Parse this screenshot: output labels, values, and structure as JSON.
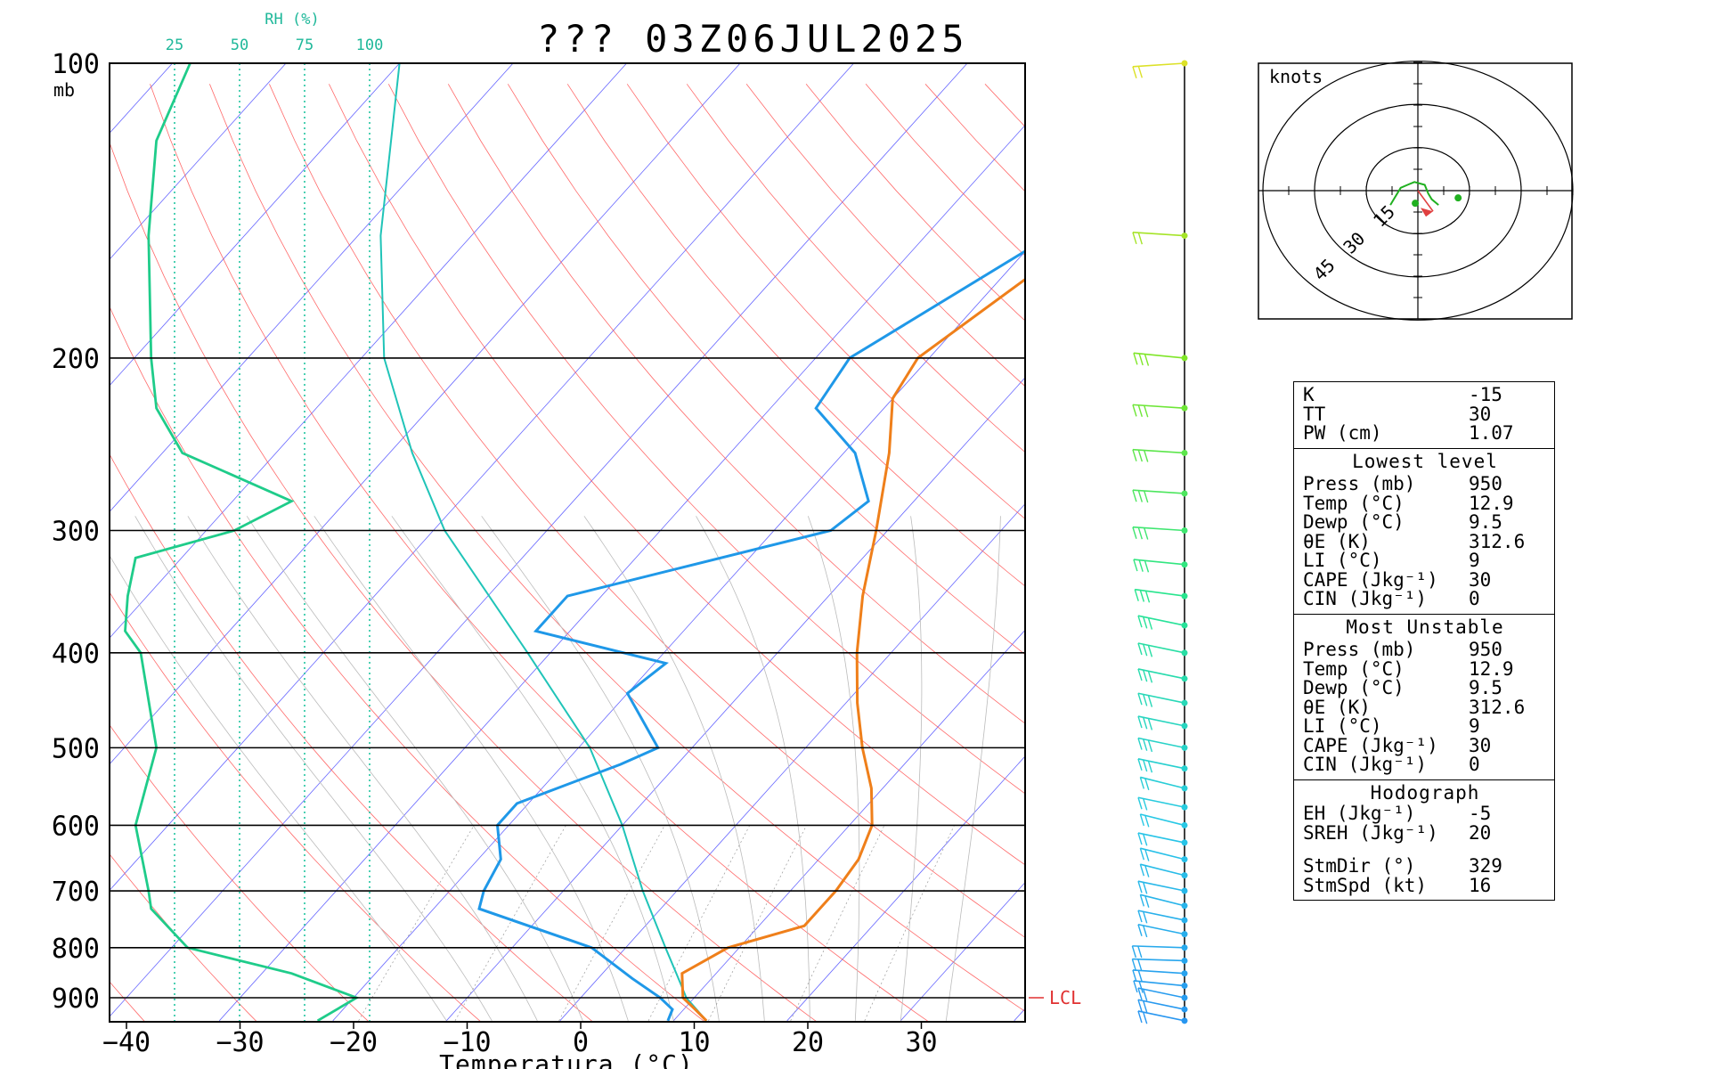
{
  "title": "??? 03Z06JUL2025",
  "colors": {
    "temperature": "#ef7f1a",
    "dewpoint": "#1f98e8",
    "parcel": "#20c4b8",
    "rh": "#1fcc8a",
    "isotherm": "#4040ff",
    "dry_adiabat": "#ff5050",
    "moist_adiabat": "#bbbbbb",
    "mixing_ratio": "#20c4a0",
    "lcl": "#e03030"
  },
  "chart_data": [
    {
      "type": "line",
      "name": "skew-t",
      "xlabel": "Temperatura (°C)",
      "ylabel_unit": "mb",
      "x_ticks": [
        -40,
        -30,
        -20,
        -10,
        0,
        10,
        20,
        30
      ],
      "y_ticks": [
        100,
        200,
        300,
        400,
        500,
        600,
        700,
        800,
        900
      ],
      "ylim": [
        950,
        100
      ],
      "y_scale": "log",
      "rh_axis": {
        "label": "RH (%)",
        "ticks": [
          25,
          50,
          75,
          100
        ]
      },
      "lcl_label": "LCL",
      "lcl_pressure": 900,
      "series": [
        {
          "name": "temperature",
          "points": [
            [
              950,
              12.9
            ],
            [
              925,
              11
            ],
            [
              900,
              9
            ],
            [
              850,
              7
            ],
            [
              800,
              9
            ],
            [
              760,
              14
            ],
            [
              700,
              14
            ],
            [
              650,
              13.5
            ],
            [
              600,
              12
            ],
            [
              550,
              9
            ],
            [
              500,
              5
            ],
            [
              450,
              1
            ],
            [
              400,
              -3
            ],
            [
              350,
              -7
            ],
            [
              300,
              -11
            ],
            [
              250,
              -16
            ],
            [
              220,
              -20
            ],
            [
              200,
              -21
            ],
            [
              150,
              -16
            ],
            [
              120,
              -12
            ],
            [
              100,
              -9
            ]
          ]
        },
        {
          "name": "dewpoint",
          "points": [
            [
              950,
              9.5
            ],
            [
              925,
              9
            ],
            [
              900,
              7
            ],
            [
              860,
              3
            ],
            [
              800,
              -3
            ],
            [
              730,
              -16
            ],
            [
              700,
              -17
            ],
            [
              650,
              -18
            ],
            [
              600,
              -21
            ],
            [
              570,
              -21
            ],
            [
              520,
              -15
            ],
            [
              500,
              -13
            ],
            [
              440,
              -20
            ],
            [
              410,
              -19
            ],
            [
              380,
              -33
            ],
            [
              350,
              -33
            ],
            [
              300,
              -15
            ],
            [
              280,
              -14
            ],
            [
              250,
              -19
            ],
            [
              225,
              -26
            ],
            [
              200,
              -27
            ],
            [
              150,
              -19
            ],
            [
              120,
              -14
            ],
            [
              100,
              -10
            ]
          ]
        },
        {
          "name": "parcel",
          "points": [
            [
              950,
              12.9
            ],
            [
              900,
              9.3
            ],
            [
              850,
              6.5
            ],
            [
              800,
              3.5
            ],
            [
              700,
              -3
            ],
            [
              600,
              -10
            ],
            [
              500,
              -19
            ],
            [
              400,
              -32
            ],
            [
              300,
              -49
            ],
            [
              250,
              -58
            ],
            [
              200,
              -68
            ],
            [
              150,
              -78
            ],
            [
              100,
              -90
            ]
          ]
        },
        {
          "name": "relative_humidity",
          "points": [
            [
              950,
              80
            ],
            [
              900,
              95
            ],
            [
              850,
              70
            ],
            [
              800,
              30
            ],
            [
              730,
              16
            ],
            [
              700,
              15
            ],
            [
              600,
              10
            ],
            [
              500,
              18
            ],
            [
              400,
              12
            ],
            [
              380,
              6
            ],
            [
              350,
              7
            ],
            [
              320,
              10
            ],
            [
              300,
              48
            ],
            [
              280,
              70
            ],
            [
              250,
              28
            ],
            [
              225,
              18
            ],
            [
              200,
              16
            ],
            [
              150,
              15
            ],
            [
              120,
              18
            ],
            [
              100,
              31
            ]
          ]
        }
      ]
    },
    {
      "type": "line",
      "name": "wind-profile",
      "barbs": [
        {
          "p": 950,
          "dir": 60,
          "spd": 5
        },
        {
          "p": 925,
          "dir": 60,
          "spd": 5
        },
        {
          "p": 900,
          "dir": 60,
          "spd": 5
        },
        {
          "p": 875,
          "dir": 75,
          "spd": 5
        },
        {
          "p": 850,
          "dir": 80,
          "spd": 5
        },
        {
          "p": 825,
          "dir": 85,
          "spd": 5
        },
        {
          "p": 800,
          "dir": 85,
          "spd": 5
        },
        {
          "p": 775,
          "dir": 60,
          "spd": 5
        },
        {
          "p": 750,
          "dir": 60,
          "spd": 5
        },
        {
          "p": 725,
          "dir": 55,
          "spd": 5
        },
        {
          "p": 700,
          "dir": 60,
          "spd": 5
        },
        {
          "p": 675,
          "dir": 55,
          "spd": 5
        },
        {
          "p": 650,
          "dir": 55,
          "spd": 5
        },
        {
          "p": 625,
          "dir": 60,
          "spd": 5
        },
        {
          "p": 600,
          "dir": 55,
          "spd": 5
        },
        {
          "p": 575,
          "dir": 60,
          "spd": 5
        },
        {
          "p": 550,
          "dir": 55,
          "spd": 5
        },
        {
          "p": 525,
          "dir": 60,
          "spd": 10
        },
        {
          "p": 500,
          "dir": 60,
          "spd": 10
        },
        {
          "p": 475,
          "dir": 60,
          "spd": 10
        },
        {
          "p": 450,
          "dir": 60,
          "spd": 10
        },
        {
          "p": 425,
          "dir": 60,
          "spd": 10
        },
        {
          "p": 400,
          "dir": 60,
          "spd": 10
        },
        {
          "p": 375,
          "dir": 60,
          "spd": 10
        },
        {
          "p": 350,
          "dir": 70,
          "spd": 10
        },
        {
          "p": 325,
          "dir": 75,
          "spd": 10
        },
        {
          "p": 300,
          "dir": 80,
          "spd": 10
        },
        {
          "p": 275,
          "dir": 80,
          "spd": 10
        },
        {
          "p": 250,
          "dir": 80,
          "spd": 10
        },
        {
          "p": 225,
          "dir": 80,
          "spd": 10
        },
        {
          "p": 200,
          "dir": 75,
          "spd": 10
        },
        {
          "p": 150,
          "dir": 80,
          "spd": 5
        },
        {
          "p": 100,
          "dir": 100,
          "spd": 5
        }
      ]
    },
    {
      "type": "line",
      "name": "hodograph",
      "unit_label": "knots",
      "ring_labels": [
        15,
        30,
        45
      ],
      "points": [
        [
          -8,
          -5
        ],
        [
          -7,
          -3
        ],
        [
          -5,
          1
        ],
        [
          -3,
          2
        ],
        [
          -1,
          3
        ],
        [
          2,
          2
        ],
        [
          3,
          -1
        ],
        [
          4,
          -3
        ],
        [
          6,
          -5
        ]
      ],
      "storm_motion": {
        "u": 4,
        "v": -12
      }
    }
  ],
  "indices": {
    "top": [
      {
        "label": "K",
        "value": "-15"
      },
      {
        "label": "TT",
        "value": "30"
      },
      {
        "label": "PW (cm)",
        "value": "1.07"
      }
    ],
    "lowest": {
      "title": "Lowest level",
      "rows": [
        {
          "label": "Press (mb)",
          "value": "950"
        },
        {
          "label": "Temp (°C)",
          "value": "12.9"
        },
        {
          "label": "Dewp (°C)",
          "value": "9.5"
        },
        {
          "label": "θE (K)",
          "value": "312.6"
        },
        {
          "label": "LI (°C)",
          "value": "9"
        },
        {
          "label": "CAPE (Jkg⁻¹)",
          "value": "30"
        },
        {
          "label": "CIN (Jkg⁻¹)",
          "value": "0"
        }
      ]
    },
    "unstable": {
      "title": "Most Unstable",
      "rows": [
        {
          "label": "Press (mb)",
          "value": "950"
        },
        {
          "label": "Temp (°C)",
          "value": "12.9"
        },
        {
          "label": "Dewp (°C)",
          "value": "9.5"
        },
        {
          "label": "θE (K)",
          "value": "312.6"
        },
        {
          "label": "LI (°C)",
          "value": "9"
        },
        {
          "label": "CAPE (Jkg⁻¹)",
          "value": "30"
        },
        {
          "label": "CIN (Jkg⁻¹)",
          "value": "0"
        }
      ]
    },
    "hodograph": {
      "title": "Hodograph",
      "rows": [
        {
          "label": "EH (Jkg⁻¹)",
          "value": "-5"
        },
        {
          "label": "SREH (Jkg⁻¹)",
          "value": "20"
        }
      ],
      "storm": [
        {
          "label": "StmDir (°)",
          "value": "329"
        },
        {
          "label": "StmSpd (kt)",
          "value": "16"
        }
      ]
    }
  }
}
